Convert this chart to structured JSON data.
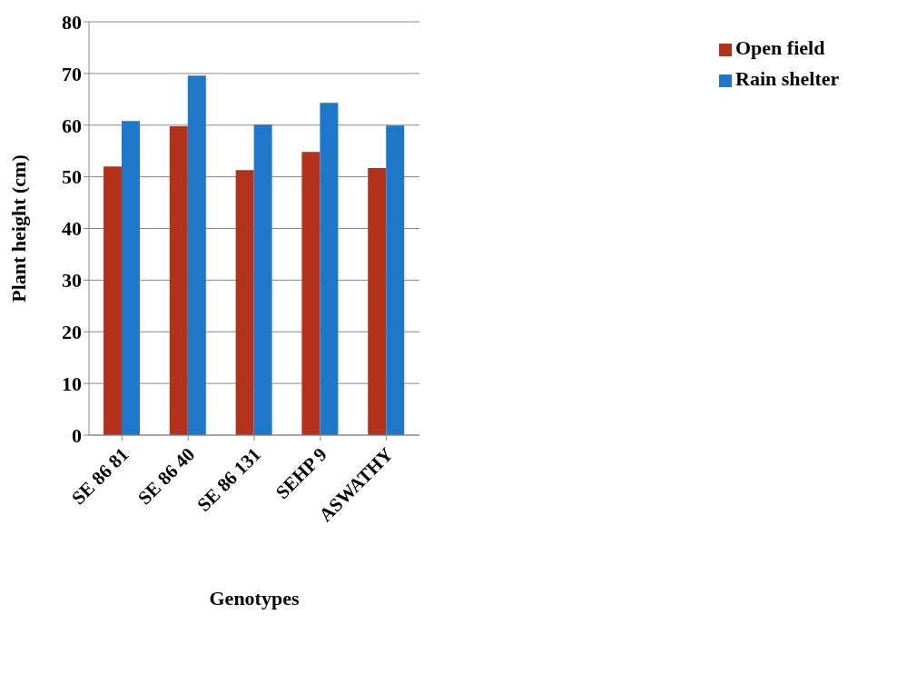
{
  "chart_data": {
    "type": "bar",
    "xlabel": "Genotypes",
    "ylabel": "Plant height (cm)",
    "categories": [
      "SE 86 81",
      "SE 86 40",
      "SE 86 131",
      "SEHP 9",
      "ASWATHY"
    ],
    "series": [
      {
        "name": "Open field",
        "color": "#b3321c",
        "values": [
          52,
          59.8,
          51.3,
          54.8,
          51.7
        ]
      },
      {
        "name": "Rain shelter",
        "color": "#1f77c9",
        "values": [
          60.8,
          69.6,
          60.1,
          64.3,
          59.9
        ]
      }
    ],
    "ylim": [
      0,
      80
    ],
    "yticks": [
      0,
      10,
      20,
      30,
      40,
      50,
      60,
      70,
      80
    ],
    "grid": "y",
    "legend": "top right"
  }
}
